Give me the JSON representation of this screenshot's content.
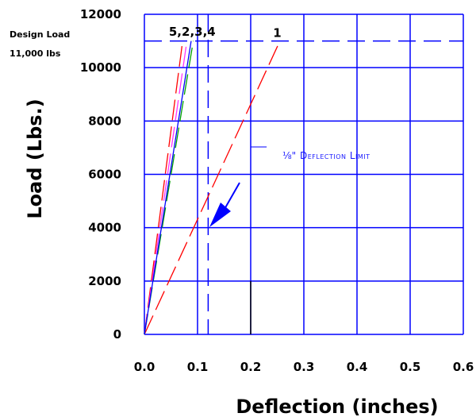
{
  "chart_data": {
    "type": "line",
    "xlabel": "Deflection (inches)",
    "ylabel": "Load (Lbs.)",
    "xlim": [
      0.0,
      0.6
    ],
    "ylim": [
      0,
      12000
    ],
    "xticks": [
      "0.0",
      "0.1",
      "0.2",
      "0.3",
      "0.4",
      "0.5",
      "0.6"
    ],
    "yticks": [
      "0",
      "2000",
      "4000",
      "6000",
      "8000",
      "10000",
      "12000"
    ],
    "grid": true,
    "design_load": {
      "value": 11000,
      "label_line1": "Design Load",
      "label_line2": "11,000 lbs"
    },
    "deflection_limit": {
      "value": 0.12,
      "label_prefix": "⅛\"",
      "label_text": "Deflection Limit"
    },
    "group_labels": [
      {
        "text": "5,2,3,4",
        "x": 0.09,
        "y": 11350
      },
      {
        "text": "1",
        "x": 0.25,
        "y": 11300
      }
    ],
    "series": [
      {
        "name": "1",
        "color": "#ff0000",
        "dash": true,
        "x": [
          0.0,
          0.255
        ],
        "y": [
          0,
          11000
        ]
      },
      {
        "name": "2",
        "color": "#ff0000",
        "dash": true,
        "x": [
          0.0,
          0.072
        ],
        "y": [
          0,
          11000
        ]
      },
      {
        "name": "3",
        "color": "#ff33ff",
        "dash": true,
        "x": [
          0.0,
          0.08
        ],
        "y": [
          0,
          11000
        ]
      },
      {
        "name": "4",
        "color": "#00a000",
        "dash": true,
        "x": [
          0.0,
          0.092
        ],
        "y": [
          0,
          11000
        ]
      },
      {
        "name": "5",
        "color": "#0000ff",
        "dash": false,
        "x": [
          0.0,
          0.088
        ],
        "y": [
          0,
          11000
        ]
      }
    ],
    "colors": {
      "grid": "#0000ff",
      "limit": "#0000ff",
      "arrow": "#0000ff"
    }
  }
}
